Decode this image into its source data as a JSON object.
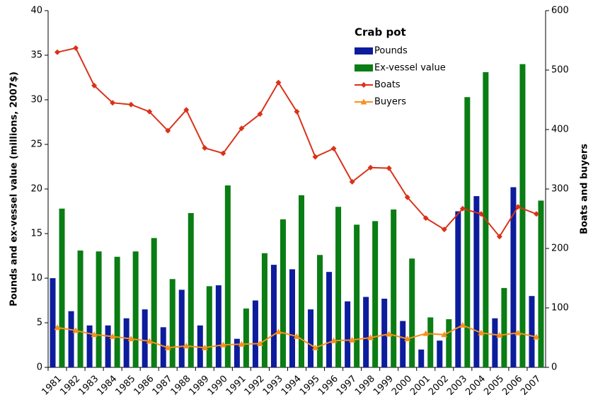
{
  "chart_data": {
    "type": "bar",
    "legend_title": "Crab pot",
    "y_label": "Pounds and ex-vessel value (millions, 2007$)",
    "y2_label": "Boats and buyers",
    "categories": [
      "1981",
      "1982",
      "1983",
      "1984",
      "1985",
      "1986",
      "1987",
      "1988",
      "1989",
      "1990",
      "1991",
      "1992",
      "1993",
      "1994",
      "1995",
      "1996",
      "1997",
      "1998",
      "1999",
      "2000",
      "2001",
      "2002",
      "2003",
      "2004",
      "2005",
      "2006",
      "2007"
    ],
    "series": [
      {
        "name": "Pounds",
        "type": "bar",
        "color": "#0c1c9c",
        "values": [
          10.0,
          6.3,
          4.7,
          4.7,
          5.5,
          6.5,
          4.5,
          8.7,
          4.7,
          9.2,
          3.2,
          7.5,
          11.5,
          11.0,
          6.5,
          10.7,
          7.4,
          7.9,
          7.7,
          5.2,
          2.0,
          3.0,
          17.5,
          19.2,
          5.5,
          20.2,
          8.0
        ]
      },
      {
        "name": "Ex-vessel value",
        "type": "bar",
        "color": "#0a7d14",
        "values": [
          17.8,
          13.1,
          13.0,
          12.4,
          13.0,
          14.5,
          9.9,
          17.3,
          9.1,
          20.4,
          6.6,
          12.8,
          16.6,
          19.3,
          12.6,
          18.0,
          16.0,
          16.4,
          17.7,
          12.2,
          5.6,
          5.4,
          30.3,
          33.1,
          8.9,
          34.0,
          18.7
        ]
      },
      {
        "name": "Boats",
        "type": "line",
        "marker": "diamond",
        "axis": "y2",
        "color": "#d9321a",
        "values": [
          530,
          537,
          474,
          445,
          442,
          430,
          398,
          433,
          369,
          360,
          402,
          426,
          479,
          430,
          354,
          368,
          312,
          336,
          335,
          286,
          251,
          232,
          267,
          258,
          220,
          270,
          258
        ]
      },
      {
        "name": "Buyers",
        "type": "line",
        "marker": "triangle",
        "axis": "y2",
        "color": "#f7901e",
        "values": [
          67,
          62,
          55,
          52,
          48,
          44,
          33,
          36,
          33,
          38,
          39,
          40,
          60,
          52,
          33,
          45,
          46,
          50,
          56,
          48,
          57,
          55,
          71,
          58,
          54,
          58,
          51
        ]
      }
    ],
    "ylim": [
      0,
      40
    ],
    "yticks": [
      0,
      5,
      10,
      15,
      20,
      25,
      30,
      35,
      40
    ],
    "y2lim": [
      0,
      600
    ],
    "y2ticks": [
      0,
      100,
      200,
      300,
      400,
      500,
      600
    ]
  }
}
